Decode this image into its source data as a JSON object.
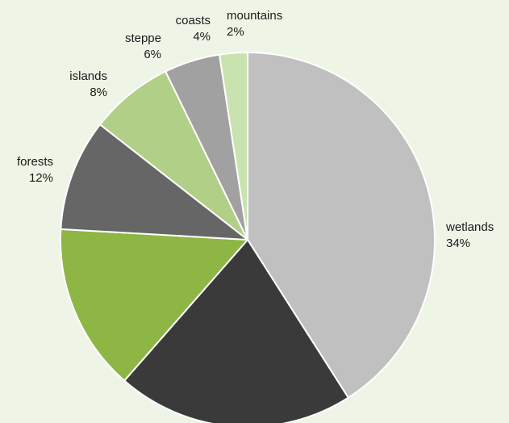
{
  "chart_data": {
    "type": "pie",
    "title": "",
    "slices": [
      {
        "label": "wetlands",
        "value": 34,
        "value_label": "34%",
        "color": "#c0c0c0"
      },
      {
        "label": "",
        "value": 17,
        "value_label": "",
        "color": "#3a3a3a"
      },
      {
        "label": "forests",
        "value": 12,
        "value_label": "12%",
        "color": "#8db644"
      },
      {
        "label": "islands",
        "value": 8,
        "value_label": "8%",
        "color": "#666666"
      },
      {
        "label": "steppe",
        "value": 6,
        "value_label": "6%",
        "color": "#b2cf88"
      },
      {
        "label": "coasts",
        "value": 4,
        "value_label": "4%",
        "color": "#a1a1a1"
      },
      {
        "label": "mountains",
        "value": 2,
        "value_label": "2%",
        "color": "#c9e3b0"
      }
    ],
    "legend": "none"
  }
}
